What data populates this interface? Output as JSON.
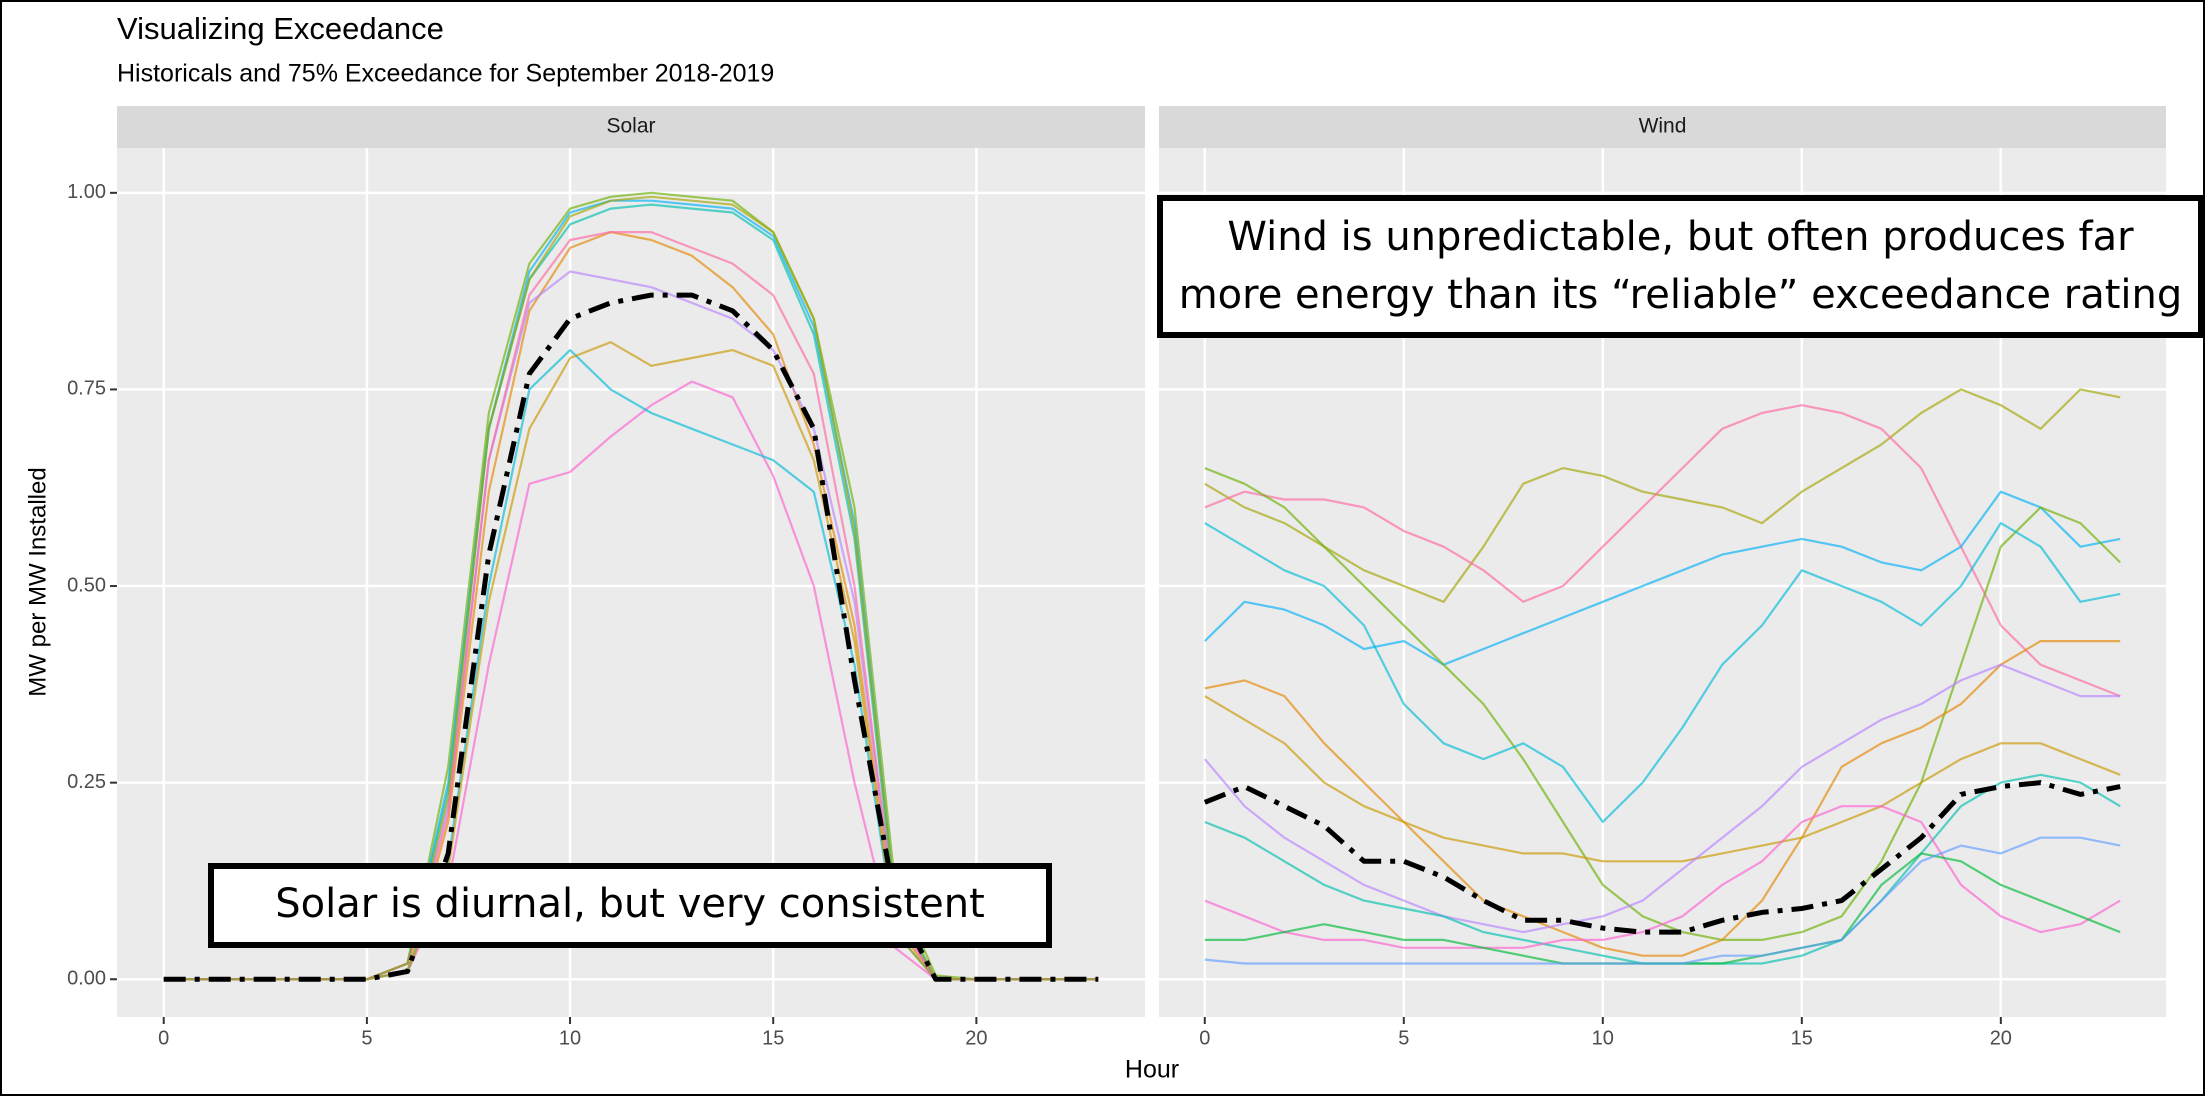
{
  "figure": {
    "title": "Visualizing Exceedance",
    "subtitle": "Historicals and 75% Exceedance for September 2018-2019",
    "x_label": "Hour",
    "y_label": "MW per MW Installed"
  },
  "chart_data": [
    {
      "type": "line",
      "facet": "Solar",
      "annotation": [
        "Solar is diurnal, but very consistent"
      ],
      "x": [
        0,
        1,
        2,
        3,
        4,
        5,
        6,
        7,
        8,
        9,
        10,
        11,
        12,
        13,
        14,
        15,
        16,
        17,
        18,
        19,
        20,
        21,
        22,
        23
      ],
      "xlim": [
        -1.15,
        24.15
      ],
      "xticks": [
        0,
        5,
        10,
        15,
        20
      ],
      "ylim": [
        -0.048,
        1.057
      ],
      "yticks": [
        {
          "value": 0,
          "label": "0.00"
        },
        {
          "value": 0.25,
          "label": "0.25"
        },
        {
          "value": 0.5,
          "label": "0.50"
        },
        {
          "value": 0.75,
          "label": "0.75"
        },
        {
          "value": 1,
          "label": "1.00"
        }
      ],
      "grid": true,
      "series": [
        {
          "color": "#6BB100",
          "values": [
            0,
            0,
            0,
            0,
            0,
            0,
            0.02,
            0.27,
            0.72,
            0.91,
            0.98,
            0.995,
            1.0,
            0.995,
            0.99,
            0.95,
            0.84,
            0.6,
            0.12,
            0.005,
            0,
            0,
            0,
            0
          ]
        },
        {
          "color": "#00B0F6",
          "values": [
            0,
            0,
            0,
            0,
            0,
            0,
            0.02,
            0.25,
            0.7,
            0.9,
            0.975,
            0.99,
            0.99,
            0.985,
            0.98,
            0.945,
            0.83,
            0.58,
            0.1,
            0,
            0,
            0,
            0,
            0
          ]
        },
        {
          "color": "#E58700",
          "values": [
            0,
            0,
            0,
            0,
            0,
            0,
            0.01,
            0.2,
            0.62,
            0.85,
            0.93,
            0.95,
            0.94,
            0.92,
            0.88,
            0.82,
            0.68,
            0.45,
            0.07,
            0,
            0,
            0,
            0,
            0
          ]
        },
        {
          "color": "#FD61D1",
          "values": [
            0,
            0,
            0,
            0,
            0,
            0,
            0.01,
            0.12,
            0.4,
            0.63,
            0.645,
            0.69,
            0.73,
            0.76,
            0.74,
            0.64,
            0.5,
            0.25,
            0.04,
            0,
            0,
            0,
            0,
            0
          ]
        },
        {
          "color": "#00BCD8",
          "values": [
            0,
            0,
            0,
            0,
            0,
            0,
            0.01,
            0.15,
            0.5,
            0.75,
            0.8,
            0.75,
            0.72,
            0.7,
            0.68,
            0.66,
            0.62,
            0.4,
            0.06,
            0,
            0,
            0,
            0,
            0
          ]
        },
        {
          "color": "#C99800",
          "values": [
            0,
            0,
            0,
            0,
            0,
            0,
            0.01,
            0.14,
            0.48,
            0.7,
            0.79,
            0.81,
            0.78,
            0.79,
            0.8,
            0.78,
            0.66,
            0.43,
            0.06,
            0,
            0,
            0,
            0,
            0
          ]
        },
        {
          "color": "#B983FF",
          "values": [
            0,
            0,
            0,
            0,
            0,
            0,
            0.02,
            0.22,
            0.66,
            0.86,
            0.9,
            0.89,
            0.88,
            0.86,
            0.84,
            0.8,
            0.7,
            0.48,
            0.08,
            0,
            0,
            0,
            0,
            0
          ]
        },
        {
          "color": "#00C0AF",
          "values": [
            0,
            0,
            0,
            0,
            0,
            0,
            0.02,
            0.24,
            0.7,
            0.89,
            0.96,
            0.98,
            0.985,
            0.98,
            0.975,
            0.94,
            0.82,
            0.56,
            0.09,
            0,
            0,
            0,
            0,
            0
          ]
        },
        {
          "color": "#FF67A4",
          "values": [
            0,
            0,
            0,
            0,
            0,
            0,
            0.02,
            0.21,
            0.66,
            0.87,
            0.94,
            0.95,
            0.95,
            0.93,
            0.91,
            0.87,
            0.77,
            0.5,
            0.08,
            0,
            0,
            0,
            0,
            0
          ]
        },
        {
          "color": "#A3A500",
          "values": [
            0,
            0,
            0,
            0,
            0,
            0,
            0.02,
            0.23,
            0.7,
            0.89,
            0.97,
            0.99,
            0.995,
            0.99,
            0.985,
            0.95,
            0.84,
            0.57,
            0.1,
            0,
            0,
            0,
            0,
            0
          ]
        },
        {
          "color": "#000000",
          "line_style": "dotdash",
          "values": [
            0,
            0,
            0,
            0,
            0,
            0,
            0.01,
            0.16,
            0.54,
            0.77,
            0.84,
            0.86,
            0.87,
            0.87,
            0.85,
            0.8,
            0.7,
            0.38,
            0.1,
            0,
            0,
            0,
            0,
            0
          ]
        }
      ]
    },
    {
      "type": "line",
      "facet": "Wind",
      "annotation": [
        "Wind is unpredictable, but often produces far",
        "more energy than its “reliable” exceedance rating"
      ],
      "x": [
        0,
        1,
        2,
        3,
        4,
        5,
        6,
        7,
        8,
        9,
        10,
        11,
        12,
        13,
        14,
        15,
        16,
        17,
        18,
        19,
        20,
        21,
        22,
        23
      ],
      "xlim": [
        -1.15,
        24.15
      ],
      "xticks": [
        0,
        5,
        10,
        15,
        20
      ],
      "ylim": [
        -0.048,
        1.057
      ],
      "grid": true,
      "series": [
        {
          "color": "#A3A500",
          "values": [
            0.63,
            0.6,
            0.58,
            0.55,
            0.52,
            0.5,
            0.48,
            0.55,
            0.63,
            0.65,
            0.64,
            0.62,
            0.61,
            0.6,
            0.58,
            0.62,
            0.65,
            0.68,
            0.72,
            0.75,
            0.73,
            0.7,
            0.75,
            0.74
          ]
        },
        {
          "color": "#FF67A4",
          "values": [
            0.6,
            0.62,
            0.61,
            0.61,
            0.6,
            0.57,
            0.55,
            0.52,
            0.48,
            0.5,
            0.55,
            0.6,
            0.65,
            0.7,
            0.72,
            0.73,
            0.72,
            0.7,
            0.65,
            0.55,
            0.45,
            0.4,
            0.38,
            0.36
          ]
        },
        {
          "color": "#00B0F6",
          "values": [
            0.43,
            0.48,
            0.47,
            0.45,
            0.42,
            0.43,
            0.4,
            0.42,
            0.44,
            0.46,
            0.48,
            0.5,
            0.52,
            0.54,
            0.55,
            0.56,
            0.55,
            0.53,
            0.52,
            0.55,
            0.62,
            0.6,
            0.55,
            0.56
          ]
        },
        {
          "color": "#6BB100",
          "values": [
            0.65,
            0.63,
            0.6,
            0.55,
            0.5,
            0.45,
            0.4,
            0.35,
            0.28,
            0.2,
            0.12,
            0.08,
            0.06,
            0.05,
            0.05,
            0.06,
            0.08,
            0.15,
            0.25,
            0.4,
            0.55,
            0.6,
            0.58,
            0.53
          ]
        },
        {
          "color": "#00BCD8",
          "values": [
            0.58,
            0.55,
            0.52,
            0.5,
            0.45,
            0.35,
            0.3,
            0.28,
            0.3,
            0.27,
            0.2,
            0.25,
            0.32,
            0.4,
            0.45,
            0.52,
            0.5,
            0.48,
            0.45,
            0.5,
            0.58,
            0.55,
            0.48,
            0.49
          ]
        },
        {
          "color": "#E58700",
          "values": [
            0.37,
            0.38,
            0.36,
            0.3,
            0.25,
            0.2,
            0.15,
            0.1,
            0.08,
            0.06,
            0.04,
            0.03,
            0.03,
            0.05,
            0.1,
            0.18,
            0.27,
            0.3,
            0.32,
            0.35,
            0.4,
            0.43,
            0.43,
            0.43
          ]
        },
        {
          "color": "#C99800",
          "values": [
            0.36,
            0.33,
            0.3,
            0.25,
            0.22,
            0.2,
            0.18,
            0.17,
            0.16,
            0.16,
            0.15,
            0.15,
            0.15,
            0.16,
            0.17,
            0.18,
            0.2,
            0.22,
            0.25,
            0.28,
            0.3,
            0.3,
            0.28,
            0.26
          ]
        },
        {
          "color": "#B983FF",
          "values": [
            0.28,
            0.22,
            0.18,
            0.15,
            0.12,
            0.1,
            0.08,
            0.07,
            0.06,
            0.07,
            0.08,
            0.1,
            0.14,
            0.18,
            0.22,
            0.27,
            0.3,
            0.33,
            0.35,
            0.38,
            0.4,
            0.38,
            0.36,
            0.36
          ]
        },
        {
          "color": "#00C0AF",
          "values": [
            0.2,
            0.18,
            0.15,
            0.12,
            0.1,
            0.09,
            0.08,
            0.06,
            0.05,
            0.04,
            0.03,
            0.02,
            0.02,
            0.02,
            0.02,
            0.03,
            0.05,
            0.1,
            0.16,
            0.22,
            0.25,
            0.26,
            0.25,
            0.22
          ]
        },
        {
          "color": "#FD61D1",
          "values": [
            0.1,
            0.08,
            0.06,
            0.05,
            0.05,
            0.04,
            0.04,
            0.04,
            0.04,
            0.05,
            0.05,
            0.06,
            0.08,
            0.12,
            0.15,
            0.2,
            0.22,
            0.22,
            0.2,
            0.12,
            0.08,
            0.06,
            0.07,
            0.1
          ]
        },
        {
          "color": "#00BA38",
          "values": [
            0.05,
            0.05,
            0.06,
            0.07,
            0.06,
            0.05,
            0.05,
            0.04,
            0.03,
            0.02,
            0.02,
            0.02,
            0.02,
            0.02,
            0.03,
            0.04,
            0.05,
            0.12,
            0.16,
            0.15,
            0.12,
            0.1,
            0.08,
            0.06
          ]
        },
        {
          "color": "#619CFF",
          "values": [
            0.025,
            0.02,
            0.02,
            0.02,
            0.02,
            0.02,
            0.02,
            0.02,
            0.02,
            0.02,
            0.02,
            0.02,
            0.02,
            0.03,
            0.03,
            0.04,
            0.05,
            0.1,
            0.15,
            0.17,
            0.16,
            0.18,
            0.18,
            0.17
          ]
        },
        {
          "color": "#000000",
          "line_style": "dotdash",
          "values": [
            0.225,
            0.245,
            0.22,
            0.195,
            0.15,
            0.15,
            0.13,
            0.1,
            0.075,
            0.075,
            0.065,
            0.06,
            0.06,
            0.075,
            0.085,
            0.09,
            0.1,
            0.14,
            0.18,
            0.235,
            0.245,
            0.25,
            0.235,
            0.245
          ]
        }
      ]
    }
  ]
}
